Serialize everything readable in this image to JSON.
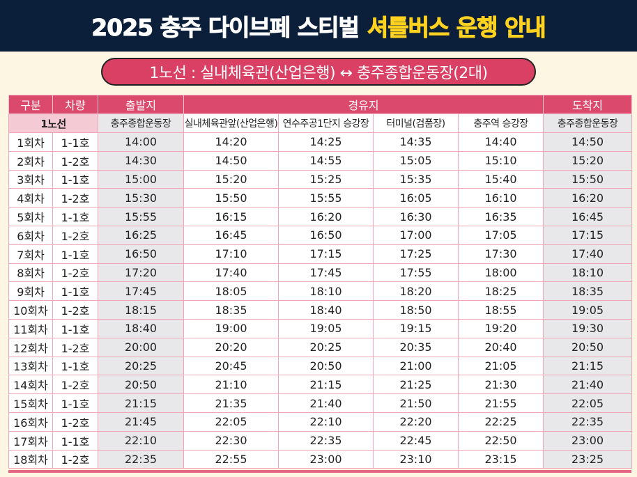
{
  "header": {
    "title_white": "2025 충주 다이브페 스티벌",
    "title_yellow": "셔틀버스 운행 안내"
  },
  "route_pill": "1노선 : 실내체육관(산업은행) ↔ 충주종합운동장(2대)",
  "table": {
    "group_headers": [
      "구분",
      "차량",
      "출발지",
      "경유지",
      "도착지"
    ],
    "route_label": "1노선",
    "stops": [
      "충주종합운동장",
      "실내체육관앞(산업은행)",
      "연수주공1단지 승강장",
      "터미널(검품장)",
      "충주역 승강장",
      "충주종합운동장"
    ],
    "rows": [
      [
        "1회차",
        "1-1호",
        "14:00",
        "14:20",
        "14:25",
        "14:35",
        "14:40",
        "14:50"
      ],
      [
        "2회차",
        "1-2호",
        "14:30",
        "14:50",
        "14:55",
        "15:05",
        "15:10",
        "15:20"
      ],
      [
        "3회차",
        "1-1호",
        "15:00",
        "15:20",
        "15:25",
        "15:35",
        "15:40",
        "15:50"
      ],
      [
        "4회차",
        "1-2호",
        "15:30",
        "15:50",
        "15:55",
        "16:05",
        "16:10",
        "16:20"
      ],
      [
        "5회차",
        "1-1호",
        "15:55",
        "16:15",
        "16:20",
        "16:30",
        "16:35",
        "16:45"
      ],
      [
        "6회차",
        "1-2호",
        "16:25",
        "16:45",
        "16:50",
        "17:00",
        "17:05",
        "17:15"
      ],
      [
        "7회차",
        "1-1호",
        "16:50",
        "17:10",
        "17:15",
        "17:25",
        "17:30",
        "17:40"
      ],
      [
        "8회차",
        "1-2호",
        "17:20",
        "17:40",
        "17:45",
        "17:55",
        "18:00",
        "18:10"
      ],
      [
        "9회차",
        "1-1호",
        "17:45",
        "18:05",
        "18:10",
        "18:20",
        "18:25",
        "18:35"
      ],
      [
        "10회차",
        "1-2호",
        "18:15",
        "18:35",
        "18:40",
        "18:50",
        "18:55",
        "19:05"
      ],
      [
        "11회차",
        "1-1호",
        "18:40",
        "19:00",
        "19:05",
        "19:15",
        "19:20",
        "19:30"
      ],
      [
        "12회차",
        "1-2호",
        "20:00",
        "20:20",
        "20:25",
        "20:35",
        "20:40",
        "20:50"
      ],
      [
        "13회차",
        "1-1호",
        "20:25",
        "20:45",
        "20:50",
        "21:00",
        "21:05",
        "21:15"
      ],
      [
        "14회차",
        "1-2호",
        "20:50",
        "21:10",
        "21:15",
        "21:25",
        "21:30",
        "21:40"
      ],
      [
        "15회차",
        "1-1호",
        "21:15",
        "21:35",
        "21:40",
        "21:50",
        "21:55",
        "22:05"
      ],
      [
        "16회차",
        "1-2호",
        "21:45",
        "22:05",
        "22:10",
        "22:20",
        "22:25",
        "22:35"
      ],
      [
        "17회차",
        "1-1호",
        "22:10",
        "22:30",
        "22:35",
        "22:45",
        "22:50",
        "23:00"
      ],
      [
        "18회차",
        "1-2호",
        "22:35",
        "22:55",
        "23:00",
        "23:10",
        "23:15",
        "23:25"
      ]
    ]
  },
  "colors": {
    "navy": "#0c1f3a",
    "yellow": "#ffd21f",
    "pink": "#db4a6c",
    "grey_cell": "#e8e8ea",
    "bg": "#fdf6e3"
  }
}
